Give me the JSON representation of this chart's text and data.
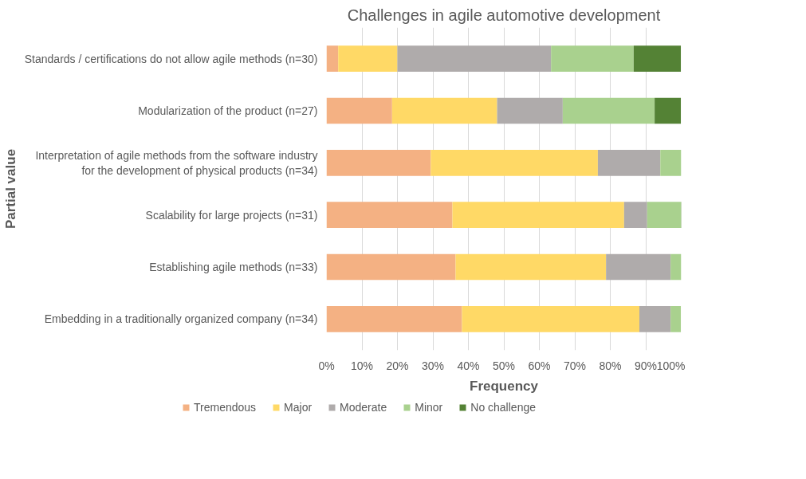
{
  "chart_data": {
    "type": "bar",
    "orientation": "horizontal",
    "stacked": true,
    "title": "Challenges in agile automotive development",
    "xlabel": "Frequency",
    "ylabel": "Partial value",
    "categories": [
      "Standards / certifications do not allow agile methods (n=30)",
      "Modularization of the product (n=27)",
      "Interpretation of agile methods from the software industry\nfor the development of physical products (n=34)",
      "Scalability for large projects (n=31)",
      "Establishing agile methods (n=33)",
      "Embedding in a traditionally organized company (n=34)"
    ],
    "series": [
      {
        "name": "Tremendous",
        "color": "#f4b183",
        "values": [
          3.3,
          18.5,
          29.4,
          35.5,
          36.4,
          38.2
        ]
      },
      {
        "name": "Major",
        "color": "#ffd966",
        "values": [
          16.7,
          29.6,
          47.1,
          48.4,
          42.4,
          50.0
        ]
      },
      {
        "name": "Moderate",
        "color": "#afabab",
        "values": [
          43.3,
          18.5,
          17.6,
          6.5,
          18.2,
          8.8
        ]
      },
      {
        "name": "Minor",
        "color": "#a9d18e",
        "values": [
          23.3,
          25.9,
          5.9,
          9.7,
          3.0,
          2.9
        ]
      },
      {
        "name": "No challenge",
        "color": "#548235",
        "values": [
          13.3,
          7.4,
          0,
          0,
          0,
          0
        ]
      }
    ],
    "xlim": [
      0,
      100
    ],
    "xticks": [
      {
        "value": 0,
        "label": "0%"
      },
      {
        "value": 10,
        "label": "10%"
      },
      {
        "value": 20,
        "label": "20%"
      },
      {
        "value": 30,
        "label": "30%"
      },
      {
        "value": 40,
        "label": "40%"
      },
      {
        "value": 50,
        "label": "50%"
      },
      {
        "value": 60,
        "label": "60%"
      },
      {
        "value": 70,
        "label": "70%"
      },
      {
        "value": 80,
        "label": "80%"
      },
      {
        "value": 90,
        "label": "90%"
      },
      {
        "value": 100,
        "label": "100%"
      }
    ],
    "grid": "x",
    "legend": "bottom"
  }
}
